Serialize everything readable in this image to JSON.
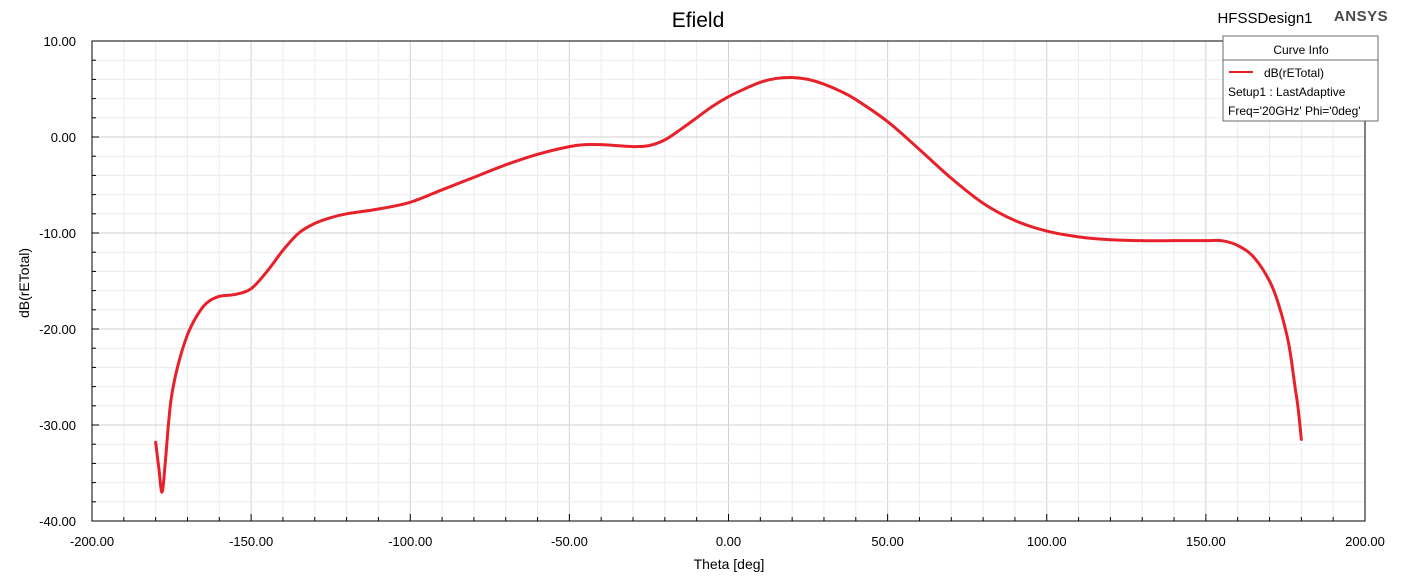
{
  "header": {
    "design_name": "HFSSDesign1",
    "brand": "ANSYS"
  },
  "legend": {
    "title": "Curve Info",
    "curve_label": "dB(rETotal)",
    "setup_line": "Setup1 : LastAdaptive",
    "params_line": "Freq='20GHz' Phi='0deg'"
  },
  "colors": {
    "curve": "#e8202a",
    "major_grid": "#d2d2d2",
    "minor_grid": "#ececec",
    "axis": "#000000"
  },
  "chart_data": {
    "type": "line",
    "title": "Efield",
    "xlabel": "Theta [deg]",
    "ylabel": "dB(rETotal)",
    "xlim": [
      -200,
      200
    ],
    "ylim": [
      -40,
      10
    ],
    "x_ticks": [
      "-200.00",
      "-150.00",
      "-100.00",
      "-50.00",
      "0.00",
      "50.00",
      "100.00",
      "150.00",
      "200.00"
    ],
    "y_ticks": [
      "10.00",
      "0.00",
      "-10.00",
      "-20.00",
      "-30.00",
      "-40.00"
    ],
    "grid": true,
    "legend_position": "top-right",
    "series": [
      {
        "name": "dB(rETotal)",
        "x": [
          -180,
          -179,
          -178,
          -177,
          -176,
          -175,
          -173,
          -170,
          -167,
          -164,
          -160,
          -155,
          -150,
          -145,
          -140,
          -135,
          -130,
          -125,
          -120,
          -110,
          -100,
          -90,
          -80,
          -70,
          -60,
          -50,
          -45,
          -40,
          -35,
          -30,
          -25,
          -20,
          -15,
          -10,
          -5,
          0,
          5,
          10,
          15,
          20,
          25,
          30,
          35,
          40,
          50,
          60,
          70,
          80,
          90,
          100,
          110,
          120,
          130,
          140,
          150,
          155,
          160,
          165,
          170,
          173,
          176,
          178,
          179,
          180
        ],
        "y": [
          -31.8,
          -34.5,
          -37.0,
          -34.0,
          -30.0,
          -27.0,
          -23.8,
          -20.6,
          -18.6,
          -17.3,
          -16.6,
          -16.4,
          -15.8,
          -14.0,
          -11.8,
          -10.0,
          -9.0,
          -8.4,
          -8.0,
          -7.5,
          -6.8,
          -5.5,
          -4.2,
          -2.9,
          -1.8,
          -1.0,
          -0.8,
          -0.8,
          -0.9,
          -1.0,
          -0.9,
          -0.3,
          0.8,
          2.0,
          3.2,
          4.2,
          5.0,
          5.7,
          6.1,
          6.2,
          6.0,
          5.5,
          4.8,
          3.9,
          1.6,
          -1.3,
          -4.3,
          -6.9,
          -8.7,
          -9.8,
          -10.4,
          -10.7,
          -10.8,
          -10.8,
          -10.8,
          -10.8,
          -11.3,
          -12.5,
          -15.0,
          -17.6,
          -21.5,
          -26.0,
          -28.3,
          -31.5
        ]
      }
    ]
  }
}
